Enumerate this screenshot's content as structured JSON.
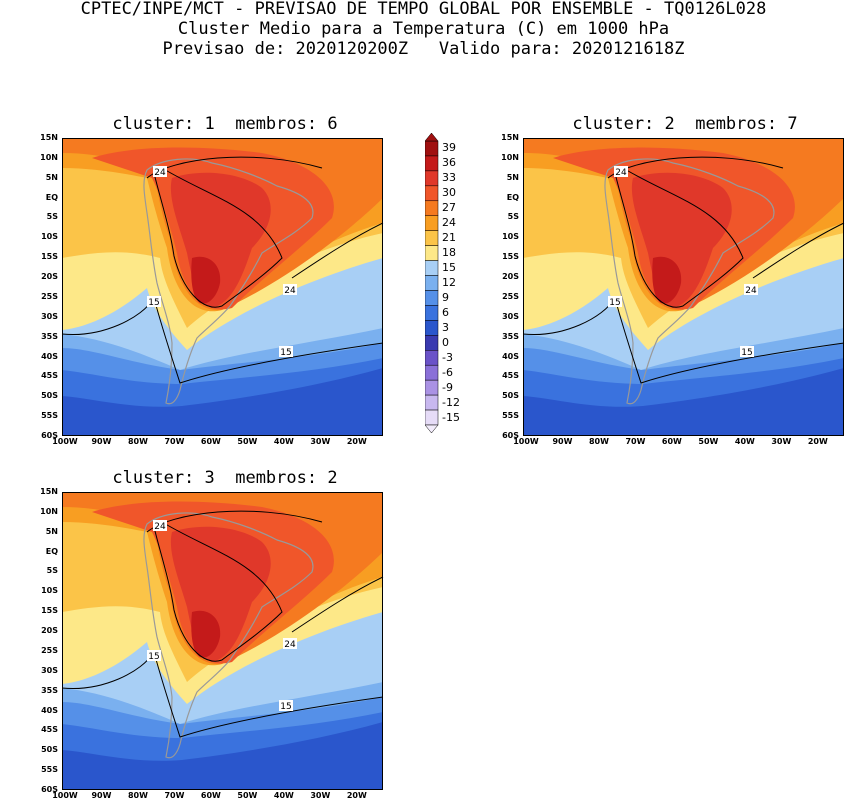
{
  "header": {
    "line1": "CPTEC/INPE/MCT - PREVISAO DE TEMPO GLOBAL POR ENSEMBLE - TQ0126L028",
    "line2": "Cluster Medio para a Temperatura (C) em 1000 hPa",
    "line3": "Previsao de: 2020120200Z   Valido para: 2020121618Z"
  },
  "panels": [
    {
      "title": "cluster: 1  membros: 6",
      "contours": [
        "24",
        "24",
        "15",
        "15"
      ]
    },
    {
      "title": "cluster: 2  membros: 7",
      "contours": [
        "24",
        "24",
        "15",
        "15"
      ]
    },
    {
      "title": "cluster: 3  membros: 2",
      "contours": [
        "24",
        "24",
        "15",
        "15"
      ]
    }
  ],
  "lat_ticks": [
    "15N",
    "10N",
    "5N",
    "EQ",
    "5S",
    "10S",
    "15S",
    "20S",
    "25S",
    "30S",
    "35S",
    "40S",
    "45S",
    "50S",
    "55S",
    "60S"
  ],
  "lon_ticks": [
    "100W",
    "90W",
    "80W",
    "70W",
    "60W",
    "50W",
    "40W",
    "30W",
    "20W"
  ],
  "colorbar": {
    "labels": [
      "39",
      "36",
      "33",
      "30",
      "27",
      "24",
      "21",
      "18",
      "15",
      "12",
      "9",
      "6",
      "3",
      "0",
      "-3",
      "-6",
      "-9",
      "-12",
      "-15"
    ],
    "colors": [
      "#a01010",
      "#c41a1a",
      "#e0382a",
      "#f0562a",
      "#f57a20",
      "#f89e22",
      "#fbc448",
      "#fde888",
      "#a8cff5",
      "#7ab0ef",
      "#5590e8",
      "#3a72de",
      "#2a56cc",
      "#3a3ab0",
      "#6a52c8",
      "#8a70d8",
      "#aa92e4",
      "#c8b8ef",
      "#e6dcf7"
    ]
  }
}
